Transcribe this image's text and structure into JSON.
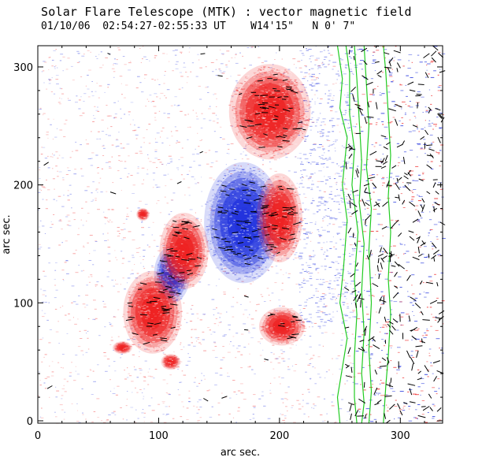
{
  "header": {
    "title": "Solar Flare Telescope (MTK) : vector magnetic field",
    "date": "01/10/06",
    "time_range": "02:54:27-02:55:33 UT",
    "coord_long": "W14'15\"",
    "coord_lat": "N 0' 7\""
  },
  "chart_data": {
    "type": "heatmap",
    "title": "Solar Flare Telescope (MTK) : vector magnetic field",
    "subtitle": "01/10/06  02:54:27-02:55:33 UT    W14'15\"   N 0' 7\"",
    "xlabel": "arc sec.",
    "ylabel": "arc sec.",
    "xlim": [
      0,
      335
    ],
    "ylim": [
      -2,
      318
    ],
    "xticks": [
      0,
      100,
      200,
      300
    ],
    "yticks": [
      0,
      100,
      200,
      300
    ],
    "colors": {
      "positive": "#ee2222",
      "negative": "#2233dd",
      "background": "#ffffff",
      "contour": "#22cc22",
      "arrow": "#000000"
    },
    "field_blobs": [
      {
        "polarity": "negative",
        "x": 170,
        "y": 168,
        "rx": 24,
        "ry": 38
      },
      {
        "polarity": "negative",
        "x": 111,
        "y": 124,
        "rx": 11,
        "ry": 18
      },
      {
        "polarity": "positive",
        "x": 95,
        "y": 92,
        "rx": 18,
        "ry": 26
      },
      {
        "polarity": "positive",
        "x": 121,
        "y": 144,
        "rx": 15,
        "ry": 24
      },
      {
        "polarity": "positive",
        "x": 200,
        "y": 172,
        "rx": 14,
        "ry": 28
      },
      {
        "polarity": "positive",
        "x": 192,
        "y": 262,
        "rx": 25,
        "ry": 30
      },
      {
        "polarity": "positive",
        "x": 202,
        "y": 80,
        "rx": 14,
        "ry": 12
      },
      {
        "polarity": "positive",
        "x": 87,
        "y": 175,
        "rx": 4,
        "ry": 4
      },
      {
        "polarity": "positive",
        "x": 70,
        "y": 62,
        "rx": 6,
        "ry": 4
      },
      {
        "polarity": "positive",
        "x": 110,
        "y": 50,
        "rx": 6,
        "ry": 5
      }
    ],
    "limb_contours": [
      [
        [
          248,
          318
        ],
        [
          252,
          290
        ],
        [
          250,
          265
        ],
        [
          256,
          240
        ],
        [
          252,
          200
        ],
        [
          256,
          170
        ],
        [
          253,
          130
        ],
        [
          250,
          100
        ],
        [
          256,
          70
        ],
        [
          252,
          45
        ],
        [
          248,
          20
        ],
        [
          250,
          -2
        ]
      ],
      [
        [
          255,
          318
        ],
        [
          258,
          295
        ],
        [
          258,
          260
        ],
        [
          262,
          230
        ],
        [
          260,
          200
        ],
        [
          265,
          160
        ],
        [
          262,
          120
        ],
        [
          264,
          90
        ],
        [
          262,
          55
        ],
        [
          262,
          20
        ],
        [
          264,
          -2
        ]
      ],
      [
        [
          262,
          318
        ],
        [
          264,
          290
        ],
        [
          266,
          255
        ],
        [
          268,
          220
        ],
        [
          266,
          185
        ],
        [
          270,
          150
        ],
        [
          268,
          110
        ],
        [
          270,
          75
        ],
        [
          268,
          40
        ],
        [
          270,
          15
        ],
        [
          268,
          -2
        ]
      ],
      [
        [
          270,
          318
        ],
        [
          272,
          285
        ],
        [
          274,
          250
        ],
        [
          272,
          215
        ],
        [
          276,
          180
        ],
        [
          274,
          145
        ],
        [
          276,
          100
        ],
        [
          274,
          60
        ],
        [
          276,
          25
        ],
        [
          274,
          -2
        ]
      ],
      [
        [
          286,
          318
        ],
        [
          288,
          295
        ],
        [
          290,
          260
        ],
        [
          292,
          225
        ],
        [
          290,
          190
        ],
        [
          292,
          160
        ],
        [
          290,
          120
        ],
        [
          292,
          90
        ],
        [
          290,
          55
        ],
        [
          288,
          30
        ],
        [
          286,
          -2
        ]
      ]
    ]
  }
}
